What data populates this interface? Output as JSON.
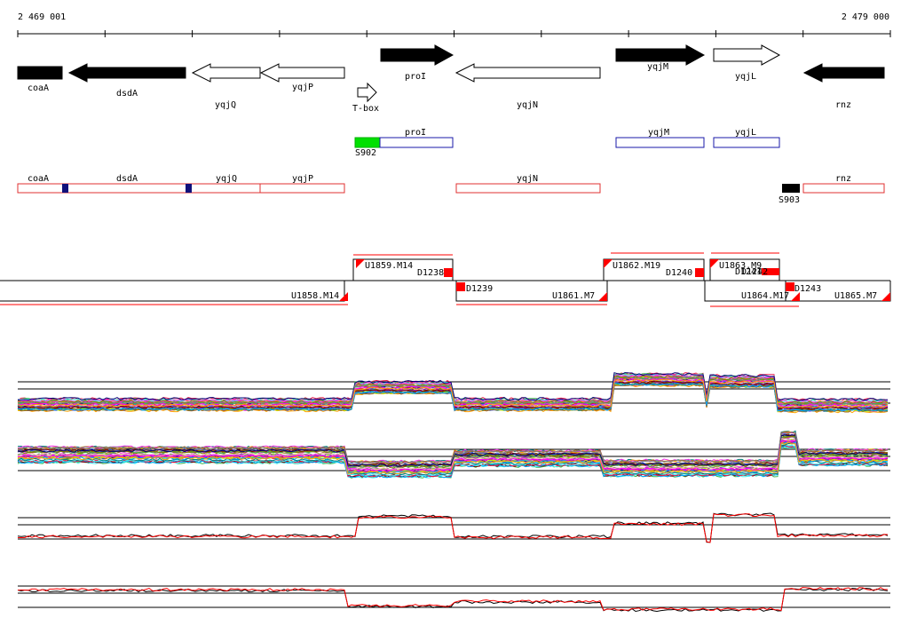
{
  "ruler": {
    "start": "2 469 001",
    "end": "2 479 000"
  },
  "genes": [
    {
      "name": "coaA",
      "strand": "-",
      "filled": true
    },
    {
      "name": "dsdA",
      "strand": "-",
      "filled": true
    },
    {
      "name": "yqjQ",
      "strand": "-",
      "filled": false
    },
    {
      "name": "yqjP",
      "strand": "-",
      "filled": false
    },
    {
      "name": "T-box",
      "strand": "+",
      "filled": false
    },
    {
      "name": "proI",
      "strand": "+",
      "filled": true
    },
    {
      "name": "yqjN",
      "strand": "-",
      "filled": false
    },
    {
      "name": "yqjM",
      "strand": "+",
      "filled": true
    },
    {
      "name": "yqjL",
      "strand": "+",
      "filled": false
    },
    {
      "name": "rnz",
      "strand": "-",
      "filled": true
    }
  ],
  "forward_transcripts": [
    {
      "name": "proI",
      "color": "#1a1aa8"
    },
    {
      "name": "yqjM",
      "color": "#1a1aa8"
    },
    {
      "name": "yqjL",
      "color": "#1a1aa8"
    },
    {
      "name": "S902",
      "color": "#00e000"
    }
  ],
  "reverse_transcripts": [
    {
      "name": "coaA",
      "color": "#e03030"
    },
    {
      "name": "dsdA",
      "color": "#e03030"
    },
    {
      "name": "yqjQ",
      "color": "#e03030"
    },
    {
      "name": "yqjP",
      "color": "#e03030"
    },
    {
      "name": "yqjN",
      "color": "#e03030"
    },
    {
      "name": "rnz",
      "color": "#e03030"
    },
    {
      "name": "S903",
      "color": "#000000"
    }
  ],
  "units": [
    "U1859.M14",
    "D1238",
    "U1858.M14",
    "D1239",
    "U1861.M7",
    "U1862.M19",
    "D1240",
    "U1863.M9",
    "D1241",
    "D1242",
    "U1864.M17",
    "D1243",
    "U1865.M7"
  ],
  "colors": {
    "accent_red": "#ff0000",
    "forward_blue": "#1a1aa8",
    "sigma_green": "#00e000"
  }
}
